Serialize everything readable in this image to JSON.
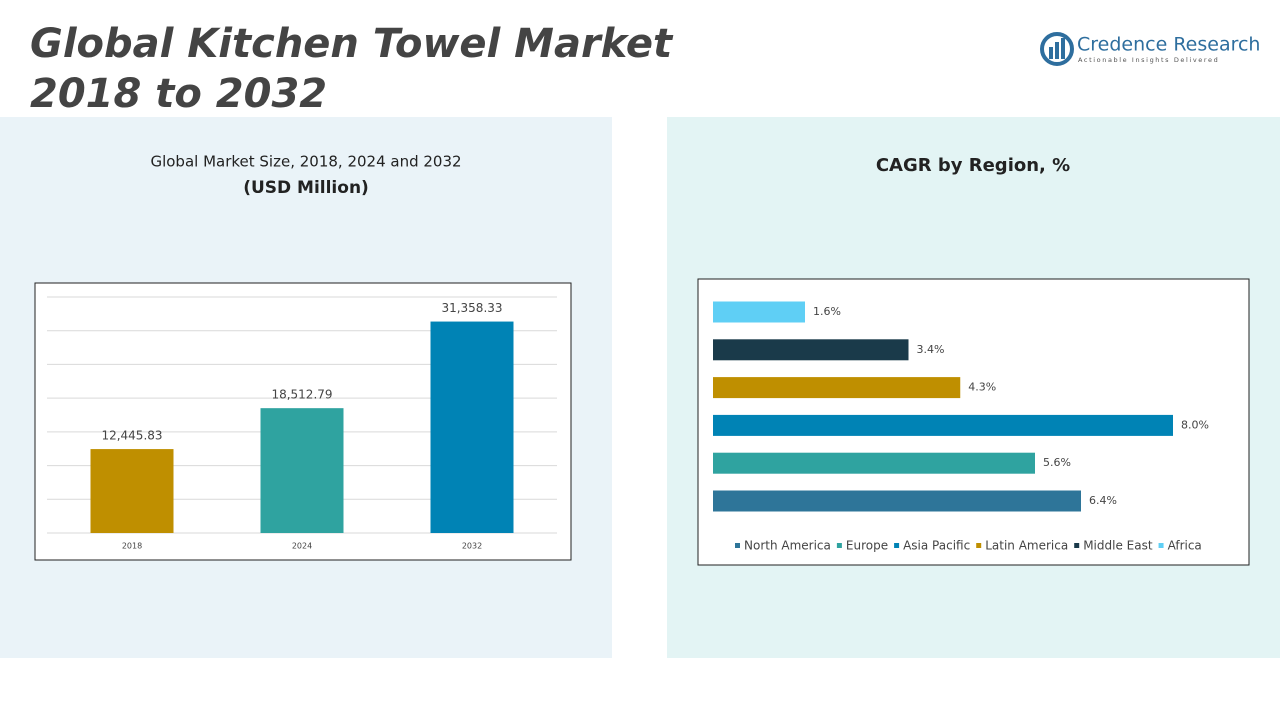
{
  "header": {
    "title_lines": [
      "Global Kitchen Towel Market",
      "2018 to 2032"
    ],
    "brand": "Credence Research",
    "tagline": "Actionable Insights Delivered"
  },
  "chart_data": [
    {
      "type": "bar",
      "title": "Global Market Size, 2018, 2024 and 2032",
      "subtitle": "(USD Million)",
      "categories": [
        "2018",
        "2024",
        "2032"
      ],
      "values": [
        12445.83,
        18512.79,
        31358.33
      ],
      "value_labels": [
        "12,445.83",
        "18,512.79",
        "31,358.33"
      ],
      "colors": [
        "#bf8f00",
        "#2fa3a0",
        "#0083b5"
      ],
      "ylim": [
        0,
        35000
      ],
      "yticks": [
        0,
        5000,
        10000,
        15000,
        20000,
        25000,
        30000,
        35000
      ],
      "grid": true
    },
    {
      "type": "barh",
      "title": "CAGR by Region, %",
      "xlim": [
        0,
        8
      ],
      "series": [
        {
          "name": "North America",
          "color": "#2e7599",
          "values": [
            6.4
          ],
          "value_labels": [
            "6.4%"
          ]
        },
        {
          "name": "Europe",
          "color": "#2fa3a0",
          "values": [
            5.6
          ],
          "value_labels": [
            "5.6%"
          ]
        },
        {
          "name": "Asia Pacific",
          "color": "#0083b5",
          "values": [
            8.0
          ],
          "value_labels": [
            "8.0%"
          ]
        },
        {
          "name": "Latin America",
          "color": "#bf8f00",
          "values": [
            4.3
          ],
          "value_labels": [
            "4.3%"
          ]
        },
        {
          "name": "Middle East",
          "color": "#1a3a4a",
          "values": [
            3.4
          ],
          "value_labels": [
            "3.4%"
          ]
        },
        {
          "name": "Africa",
          "color": "#5fcff5",
          "values": [
            1.6
          ],
          "value_labels": [
            "1.6%"
          ]
        }
      ],
      "legend": "bottom"
    }
  ]
}
